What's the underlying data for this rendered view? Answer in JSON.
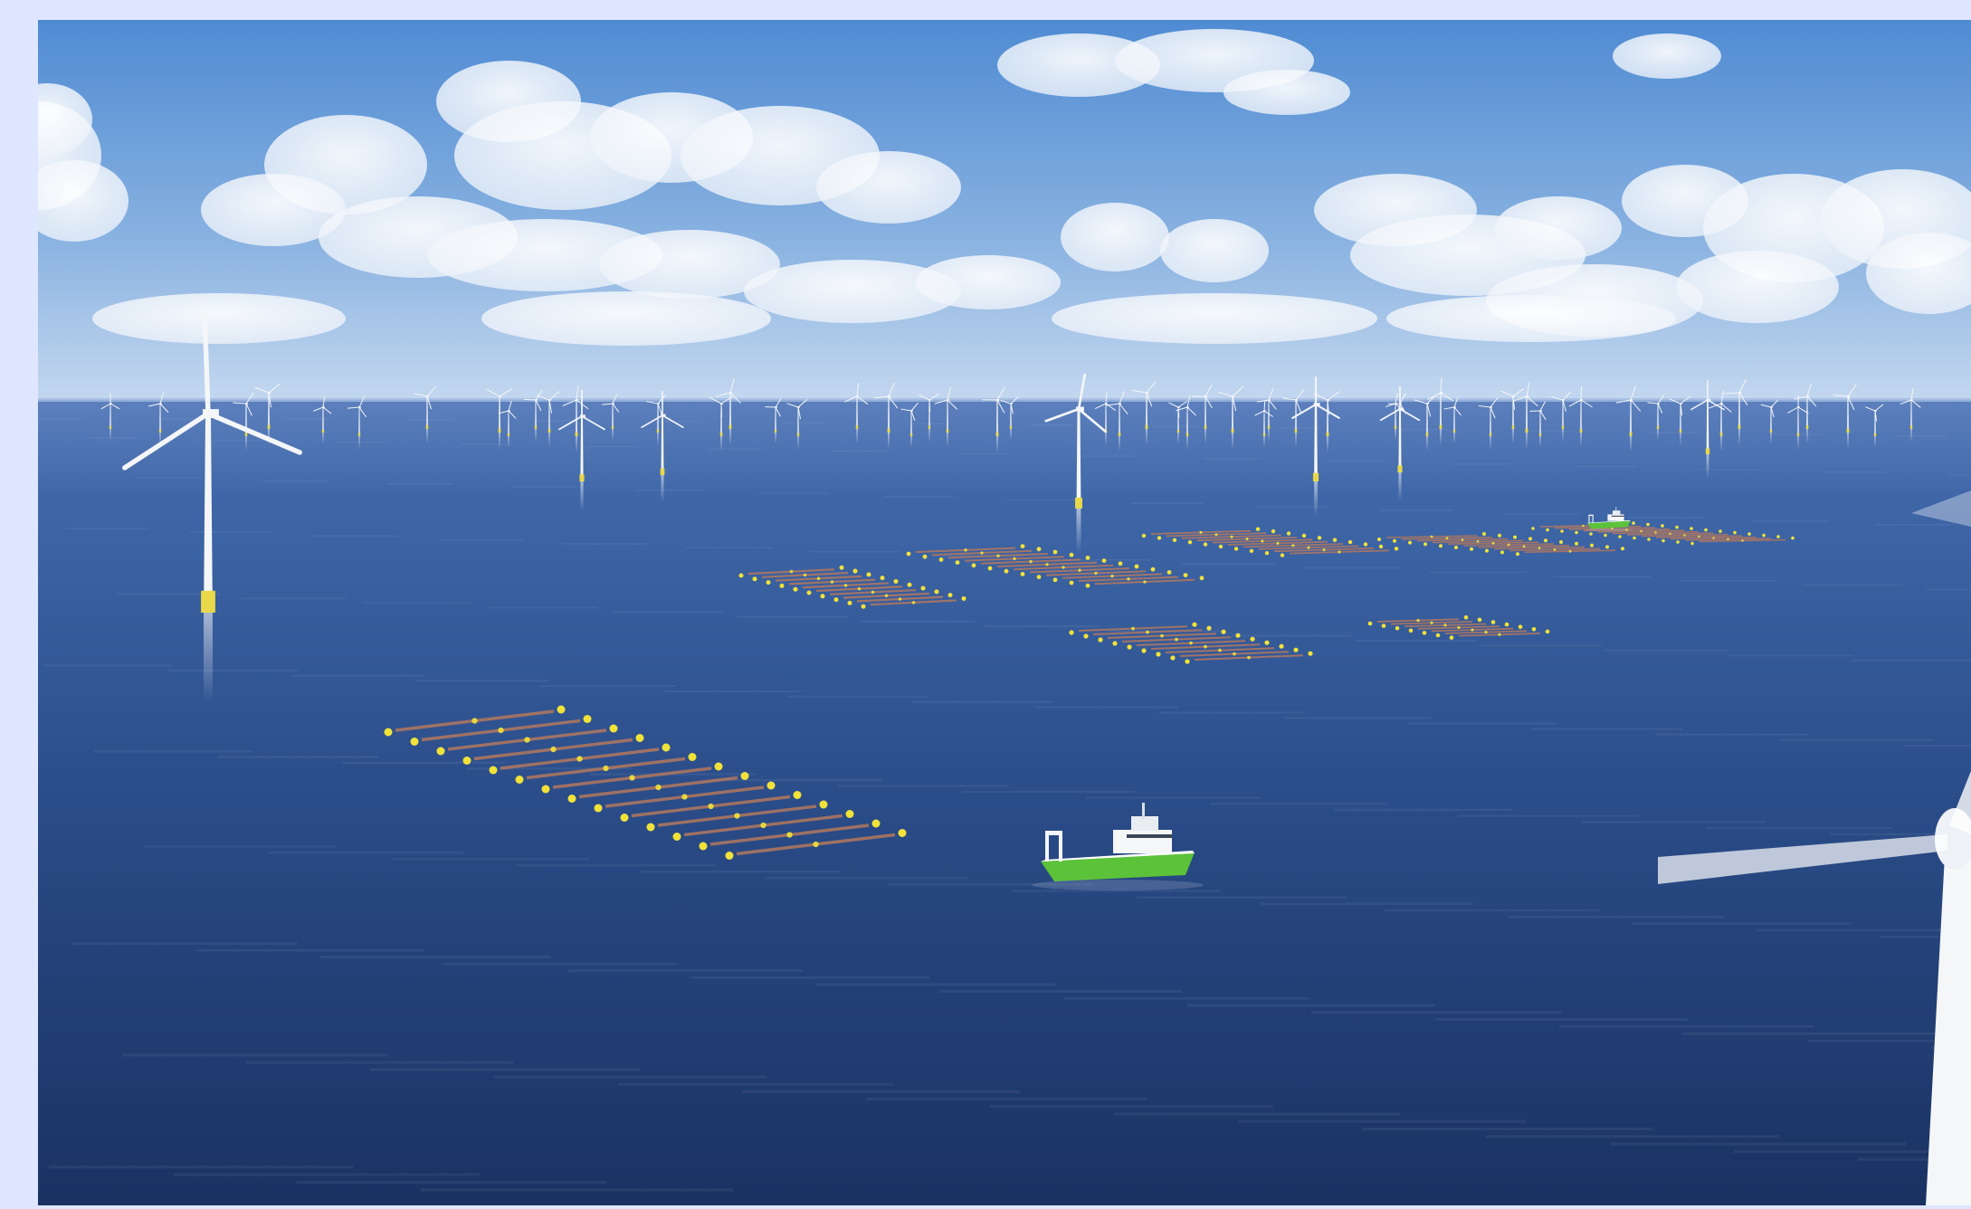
{
  "page": {
    "background_color": "#dfe6ff"
  },
  "scene": {
    "description_icons": [
      "offshore-wind-turbine-icon",
      "support-vessel-icon",
      "seaweed-farm-line-icon",
      "yellow-buoy-icon",
      "cloud-icon"
    ],
    "colors": {
      "sky_top": "#5a93d6",
      "sky_horizon": "#bcd3ee",
      "sea_horizon": "#5b7fbd",
      "sea_deep": "#1c3566",
      "turbine_white": "#f4f6f8",
      "turbine_base_yellow": "#e8d84a",
      "vessel_green": "#5cc23a",
      "buoy_yellow": "#f1e23a",
      "line_rope": "#b3785e"
    }
  }
}
